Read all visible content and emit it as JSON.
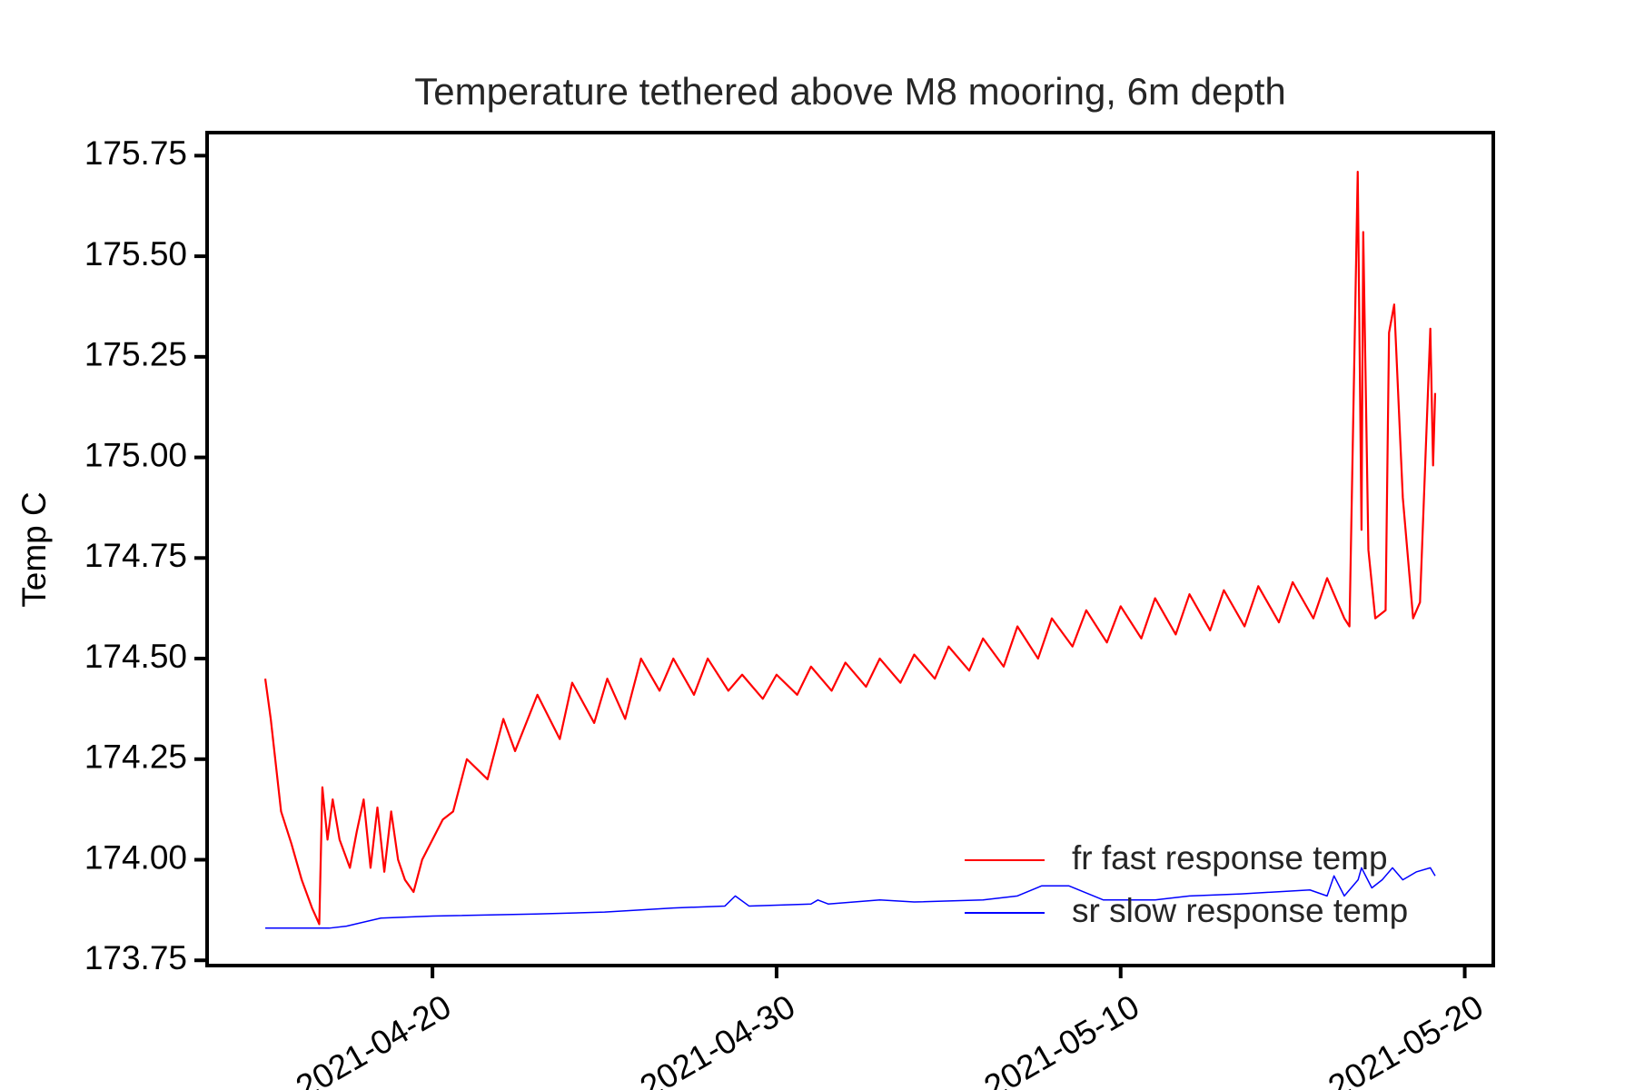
{
  "chart_data": {
    "type": "line",
    "title": "Temperature tethered above M8 mooring, 6m depth",
    "y_label": "Temp C",
    "xlim": [
      103.45,
      140.83
    ],
    "ylim": [
      173.737,
      175.805
    ],
    "xticks": [
      {
        "value": 110,
        "label": "2021-04-20"
      },
      {
        "value": 120,
        "label": "2021-04-30"
      },
      {
        "value": 130,
        "label": "2021-05-10"
      },
      {
        "value": 140,
        "label": "2021-05-20"
      }
    ],
    "yticks": [
      {
        "value": 173.75,
        "label": "173.75"
      },
      {
        "value": 174,
        "label": "174.00"
      },
      {
        "value": 174.25,
        "label": "174.25"
      },
      {
        "value": 174.5,
        "label": "174.50"
      },
      {
        "value": 174.75,
        "label": "174.75"
      },
      {
        "value": 175,
        "label": "175.00"
      },
      {
        "value": 175.25,
        "label": "175.25"
      },
      {
        "value": 175.5,
        "label": "175.50"
      },
      {
        "value": 175.75,
        "label": "175.75"
      }
    ],
    "legend": "lower right",
    "series": [
      {
        "name": "fr fast response temp",
        "color": "#ff0000",
        "x": [
          105.14,
          105.3,
          105.6,
          105.9,
          106.2,
          106.5,
          106.71,
          106.8,
          106.95,
          107.1,
          107.3,
          107.6,
          107.8,
          108.0,
          108.2,
          108.4,
          108.6,
          108.8,
          109.0,
          109.2,
          109.45,
          109.7,
          110.0,
          110.3,
          110.6,
          111.0,
          111.6,
          112.06,
          112.4,
          113.05,
          113.7,
          114.06,
          114.7,
          115.08,
          115.6,
          116.06,
          116.6,
          117.0,
          117.6,
          118.0,
          118.6,
          119.0,
          119.6,
          120.0,
          120.6,
          121.0,
          121.6,
          122.0,
          122.6,
          123.0,
          123.6,
          124.0,
          124.6,
          125.0,
          125.6,
          126.0,
          126.6,
          127.0,
          127.6,
          128.0,
          128.6,
          129.0,
          129.6,
          130.0,
          130.6,
          131.0,
          131.6,
          132.0,
          132.6,
          133.0,
          133.6,
          134.0,
          134.6,
          135.0,
          135.6,
          136.0,
          136.5,
          136.65,
          136.89,
          137.0,
          137.05,
          137.2,
          137.4,
          137.7,
          137.8,
          137.95,
          138.2,
          138.5,
          138.7,
          139.0,
          139.08,
          139.14
        ],
        "values": [
          174.45,
          174.35,
          174.12,
          174.04,
          173.95,
          173.88,
          173.84,
          174.18,
          174.05,
          174.15,
          174.05,
          173.98,
          174.07,
          174.15,
          173.98,
          174.13,
          173.97,
          174.12,
          174.0,
          173.95,
          173.92,
          174.0,
          174.05,
          174.1,
          174.12,
          174.25,
          174.2,
          174.35,
          174.27,
          174.41,
          174.3,
          174.44,
          174.34,
          174.45,
          174.35,
          174.5,
          174.42,
          174.5,
          174.41,
          174.5,
          174.42,
          174.46,
          174.4,
          174.46,
          174.41,
          174.48,
          174.42,
          174.49,
          174.43,
          174.5,
          174.44,
          174.51,
          174.45,
          174.53,
          174.47,
          174.55,
          174.48,
          174.58,
          174.5,
          174.6,
          174.53,
          174.62,
          174.54,
          174.63,
          174.55,
          174.65,
          174.56,
          174.66,
          174.57,
          174.67,
          174.58,
          174.68,
          174.59,
          174.69,
          174.6,
          174.7,
          174.6,
          174.58,
          175.71,
          174.82,
          175.56,
          174.77,
          174.6,
          174.62,
          175.31,
          175.38,
          174.9,
          174.6,
          174.64,
          175.32,
          174.98,
          175.16
        ]
      },
      {
        "name": "sr slow response temp",
        "color": "#0000ff",
        "x": [
          105.14,
          106.0,
          107.0,
          107.5,
          108.5,
          110.0,
          113.0,
          115.0,
          117.0,
          118.5,
          118.8,
          119.2,
          121.0,
          121.2,
          121.5,
          123.0,
          124.0,
          126.0,
          127.0,
          127.7,
          128.5,
          129.5,
          131.0,
          132.0,
          133.5,
          135.5,
          136.0,
          136.2,
          136.5,
          136.9,
          137.0,
          137.3,
          137.6,
          137.9,
          138.2,
          138.6,
          139.0,
          139.14
        ],
        "values": [
          173.83,
          173.83,
          173.83,
          173.835,
          173.855,
          173.86,
          173.865,
          173.87,
          173.88,
          173.885,
          173.91,
          173.885,
          173.89,
          173.9,
          173.89,
          173.9,
          173.895,
          173.9,
          173.91,
          173.935,
          173.935,
          173.9,
          173.9,
          173.91,
          173.915,
          173.925,
          173.91,
          173.96,
          173.91,
          173.95,
          173.98,
          173.93,
          173.95,
          173.98,
          173.95,
          173.97,
          173.98,
          173.96
        ]
      }
    ]
  }
}
